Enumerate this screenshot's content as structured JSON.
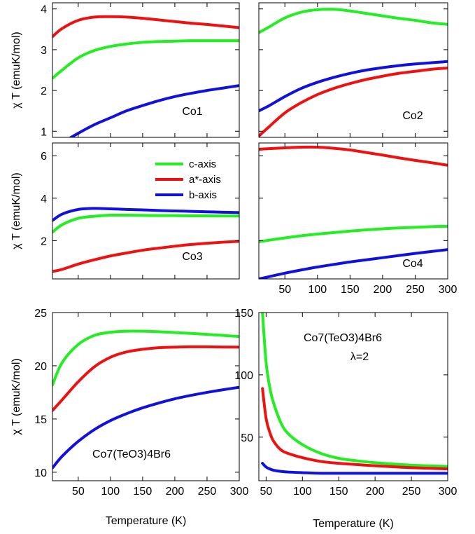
{
  "colors": {
    "c_axis": "#22ee22",
    "a_axis": "#ee1111",
    "b_axis": "#1111dd"
  },
  "legend": [
    {
      "label": "c-axis",
      "color": "#22ee22"
    },
    {
      "label": "a*-axis",
      "color": "#ee1111"
    },
    {
      "label": "b-axis",
      "color": "#1111dd"
    }
  ],
  "chart_data": [
    {
      "id": "co1",
      "type": "line",
      "annotation": "Co1",
      "xlim": [
        10,
        300
      ],
      "ylim": [
        0.85,
        4.15
      ],
      "xticks": [],
      "yticks": [
        1,
        2,
        3,
        4
      ],
      "xlabel": "",
      "ylabel": "χ T (emuK/mol)",
      "x": [
        10,
        25,
        50,
        75,
        100,
        125,
        150,
        175,
        200,
        225,
        250,
        275,
        300
      ],
      "series": [
        {
          "name": "c-axis",
          "color": "#22ee22",
          "values": [
            2.3,
            2.5,
            2.8,
            2.98,
            3.08,
            3.14,
            3.18,
            3.2,
            3.21,
            3.22,
            3.22,
            3.22,
            3.22
          ]
        },
        {
          "name": "a*-axis",
          "color": "#ee1111",
          "values": [
            3.32,
            3.52,
            3.72,
            3.8,
            3.81,
            3.8,
            3.77,
            3.73,
            3.69,
            3.65,
            3.62,
            3.58,
            3.54
          ]
        },
        {
          "name": "b-axis",
          "color": "#1111dd",
          "values": [
            0.6,
            0.72,
            0.95,
            1.16,
            1.33,
            1.5,
            1.63,
            1.75,
            1.85,
            1.93,
            2.0,
            2.06,
            2.12
          ]
        }
      ]
    },
    {
      "id": "co2",
      "type": "line",
      "annotation": "Co2",
      "xlim": [
        10,
        300
      ],
      "ylim": [
        0.85,
        4.15
      ],
      "xticks": [],
      "yticks": [],
      "xlabel": "",
      "ylabel": "",
      "x": [
        10,
        25,
        50,
        75,
        100,
        125,
        150,
        175,
        200,
        225,
        250,
        275,
        300
      ],
      "series": [
        {
          "name": "c-axis",
          "color": "#22ee22",
          "values": [
            3.42,
            3.55,
            3.78,
            3.92,
            3.98,
            3.99,
            3.95,
            3.89,
            3.83,
            3.77,
            3.72,
            3.66,
            3.62
          ]
        },
        {
          "name": "a*-axis",
          "color": "#ee1111",
          "values": [
            0.88,
            1.1,
            1.45,
            1.7,
            1.9,
            2.05,
            2.17,
            2.27,
            2.35,
            2.42,
            2.47,
            2.52,
            2.55
          ]
        },
        {
          "name": "b-axis",
          "color": "#1111dd",
          "values": [
            1.5,
            1.62,
            1.85,
            2.05,
            2.2,
            2.32,
            2.42,
            2.5,
            2.56,
            2.61,
            2.65,
            2.68,
            2.71
          ]
        }
      ]
    },
    {
      "id": "co3",
      "type": "line",
      "annotation": "Co3",
      "xlim": [
        10,
        300
      ],
      "ylim": [
        0.2,
        6.6
      ],
      "xticks": [],
      "yticks": [
        2,
        4,
        6
      ],
      "xlabel": "",
      "ylabel": "χ T (emuK/mol)",
      "x": [
        10,
        25,
        50,
        75,
        100,
        125,
        150,
        175,
        200,
        225,
        250,
        275,
        300
      ],
      "series": [
        {
          "name": "c-axis",
          "color": "#22ee22",
          "values": [
            2.4,
            2.75,
            3.05,
            3.15,
            3.2,
            3.2,
            3.19,
            3.18,
            3.18,
            3.17,
            3.17,
            3.16,
            3.16
          ]
        },
        {
          "name": "a*-axis",
          "color": "#ee1111",
          "values": [
            0.55,
            0.65,
            0.9,
            1.1,
            1.28,
            1.42,
            1.55,
            1.65,
            1.74,
            1.82,
            1.88,
            1.93,
            1.97
          ]
        },
        {
          "name": "b-axis",
          "color": "#1111dd",
          "values": [
            2.95,
            3.25,
            3.47,
            3.52,
            3.5,
            3.47,
            3.45,
            3.42,
            3.4,
            3.38,
            3.36,
            3.34,
            3.32
          ]
        }
      ]
    },
    {
      "id": "co4",
      "type": "line",
      "annotation": "Co4",
      "xlim": [
        10,
        300
      ],
      "ylim": [
        0.2,
        6.6
      ],
      "xticks": [
        50,
        100,
        150,
        200,
        250,
        300
      ],
      "yticks": [],
      "xlabel": "",
      "ylabel": "",
      "x": [
        10,
        25,
        50,
        75,
        100,
        125,
        150,
        175,
        200,
        225,
        250,
        275,
        300
      ],
      "series": [
        {
          "name": "c-axis",
          "color": "#22ee22",
          "values": [
            1.95,
            2.02,
            2.13,
            2.23,
            2.31,
            2.38,
            2.45,
            2.51,
            2.56,
            2.6,
            2.63,
            2.66,
            2.68
          ]
        },
        {
          "name": "a*-axis",
          "color": "#ee1111",
          "values": [
            6.3,
            6.33,
            6.37,
            6.4,
            6.4,
            6.35,
            6.27,
            6.15,
            6.03,
            5.9,
            5.78,
            5.67,
            5.55
          ]
        },
        {
          "name": "b-axis",
          "color": "#1111dd",
          "values": [
            0.2,
            0.3,
            0.47,
            0.62,
            0.76,
            0.88,
            1.0,
            1.1,
            1.2,
            1.3,
            1.4,
            1.49,
            1.58
          ]
        }
      ]
    },
    {
      "id": "co7",
      "type": "line",
      "annotation": "Co7(TeO3)4Br6",
      "xlim": [
        10,
        300
      ],
      "ylim": [
        9.2,
        25
      ],
      "xticks": [
        50,
        100,
        150,
        200,
        250,
        300
      ],
      "yticks": [
        10,
        15,
        20,
        25
      ],
      "xlabel": "Temperature (K)",
      "ylabel": "χ T (emuK/mol)",
      "x": [
        10,
        25,
        50,
        75,
        100,
        125,
        150,
        175,
        200,
        225,
        250,
        275,
        300
      ],
      "series": [
        {
          "name": "c-axis",
          "color": "#22ee22",
          "values": [
            18.2,
            20.3,
            22.0,
            22.85,
            23.15,
            23.25,
            23.25,
            23.2,
            23.12,
            23.04,
            22.95,
            22.85,
            22.75
          ]
        },
        {
          "name": "a*-axis",
          "color": "#ee1111",
          "values": [
            15.8,
            16.8,
            18.5,
            19.9,
            20.8,
            21.3,
            21.55,
            21.7,
            21.75,
            21.78,
            21.78,
            21.76,
            21.75
          ]
        },
        {
          "name": "b-axis",
          "color": "#1111dd",
          "values": [
            10.4,
            11.5,
            12.9,
            14.0,
            14.85,
            15.5,
            16.05,
            16.5,
            16.9,
            17.22,
            17.5,
            17.75,
            17.98
          ]
        }
      ]
    },
    {
      "id": "co7-lambda",
      "type": "line",
      "annotation": "Co7(TeO3)4Br6",
      "annotation2": "λ=2",
      "xlim": [
        40,
        300
      ],
      "ylim": [
        15,
        150
      ],
      "xticks": [
        50,
        100,
        150,
        200,
        250,
        300
      ],
      "yticks": [
        50,
        100,
        150
      ],
      "xlabel": "Temperature (K)",
      "ylabel": "",
      "x": [
        45,
        50,
        55,
        60,
        70,
        80,
        100,
        125,
        150,
        175,
        200,
        250,
        300
      ],
      "series": [
        {
          "name": "c-axis",
          "color": "#22ee22",
          "values": [
            150,
            110,
            90,
            78,
            62,
            53,
            44,
            37,
            33,
            31,
            29.5,
            27.5,
            26.5
          ]
        },
        {
          "name": "a*-axis",
          "color": "#ee1111",
          "values": [
            89,
            65,
            54,
            47,
            40,
            37,
            33.5,
            30.5,
            29,
            28,
            27,
            25.5,
            24.5
          ]
        },
        {
          "name": "b-axis",
          "color": "#1111dd",
          "values": [
            29,
            26,
            24.5,
            23.5,
            22.5,
            22,
            21.5,
            21,
            21,
            21,
            21,
            21,
            21
          ]
        }
      ]
    }
  ]
}
